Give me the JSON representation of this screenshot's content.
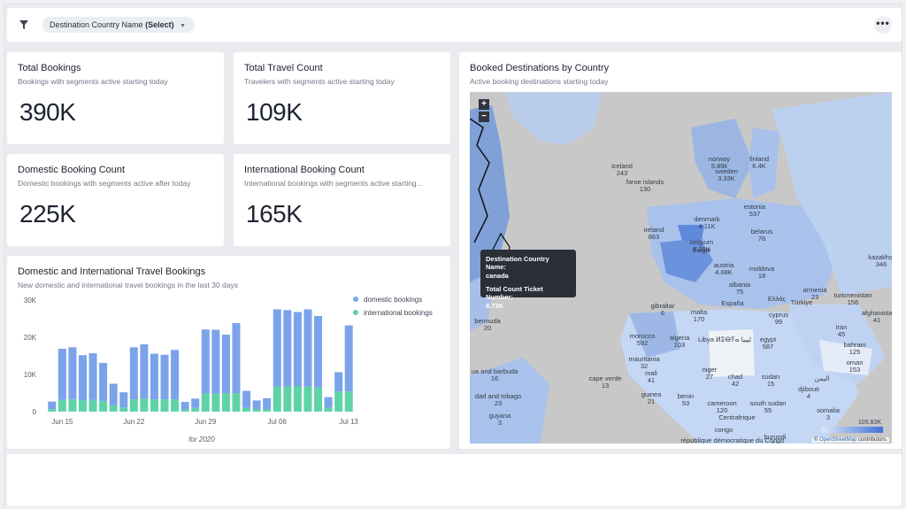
{
  "filter": {
    "icon": "filter-icon",
    "chip_label": "Destination Country Name",
    "chip_value": "(Select)"
  },
  "toolbar": {
    "more_label": "•••"
  },
  "kpis": [
    {
      "title": "Total Bookings",
      "subtitle": "Bookings with segments active starting today",
      "value": "390K"
    },
    {
      "title": "Total Travel Count",
      "subtitle": "Travelers with segments active starting today",
      "value": "109K"
    },
    {
      "title": "Domestic Booking Count",
      "subtitle": "Domestic bookings with segments active after today",
      "value": "225K"
    },
    {
      "title": "International Booking Count",
      "subtitle": "International bookings with segments active starting...",
      "value": "165K"
    }
  ],
  "bar_card": {
    "title": "Domestic and International Travel Bookings",
    "subtitle": "New domestic and international travel bookings in the last 30 days",
    "footer": "for 2020"
  },
  "chart_data": {
    "type": "bar",
    "stacked": true,
    "ylim": [
      0,
      30000
    ],
    "yticks": [
      "0",
      "10K",
      "20K",
      "30K"
    ],
    "xtick_labels": [
      "Jun 15",
      "Jun 22",
      "Jun 29",
      "Jul 06",
      "Jul 13"
    ],
    "xtick_index": [
      1,
      8,
      15,
      22,
      29
    ],
    "categories": [
      "Jun 14",
      "Jun 15",
      "Jun 16",
      "Jun 17",
      "Jun 18",
      "Jun 19",
      "Jun 20",
      "Jun 21",
      "Jun 22",
      "Jun 23",
      "Jun 24",
      "Jun 25",
      "Jun 26",
      "Jun 27",
      "Jun 28",
      "Jun 29",
      "Jun 30",
      "Jul 01",
      "Jul 02",
      "Jul 03",
      "Jul 04",
      "Jul 05",
      "Jul 06",
      "Jul 07",
      "Jul 08",
      "Jul 09",
      "Jul 10",
      "Jul 11",
      "Jul 12",
      "Jul 13"
    ],
    "series": [
      {
        "name": "domestic bookings",
        "color": "#7ba3ea",
        "values": [
          2000,
          13700,
          14000,
          12200,
          12500,
          10300,
          5800,
          4100,
          14000,
          14600,
          12300,
          12000,
          13300,
          2000,
          2500,
          17300,
          17200,
          15700,
          18800,
          4600,
          2300,
          3000,
          20800,
          20600,
          20000,
          20800,
          19200,
          2800,
          5200,
          17800
        ]
      },
      {
        "name": "international bookings",
        "color": "#5fd3a6",
        "values": [
          700,
          3200,
          3300,
          3000,
          3200,
          2800,
          1700,
          1100,
          3300,
          3500,
          3300,
          3300,
          3300,
          600,
          1000,
          4800,
          4800,
          5000,
          5000,
          1000,
          700,
          600,
          6700,
          6700,
          6800,
          6700,
          6500,
          1100,
          5400,
          5400
        ]
      }
    ],
    "legend_position": "top-right"
  },
  "map_card": {
    "title": "Booked Destinations by Country",
    "subtitle": "Active booking destinations starting today",
    "zoom_in": "+",
    "zoom_out": "−",
    "tooltip": {
      "label1": "Destination Country Name:",
      "value1": "canada",
      "label2": "Total Count Ticket Number:",
      "value2": "8.73K"
    },
    "scale_max": "105.83K",
    "attribution_prefix": "©",
    "attribution_link": "OpenStreetMap",
    "attribution_suffix": "contributors."
  },
  "map_labels": [
    {
      "name": "iceland",
      "value": "243"
    },
    {
      "name": "faroe islands",
      "value": "130"
    },
    {
      "name": "norway",
      "value": "5.89k"
    },
    {
      "name": "sweden",
      "value": "3.33K"
    },
    {
      "name": "finland",
      "value": "6.4K"
    },
    {
      "name": "estonia",
      "value": "537"
    },
    {
      "name": "denmark",
      "value": "4.11K"
    },
    {
      "name": "ireland",
      "value": "863"
    },
    {
      "name": "belgium",
      "value": "7.21K"
    },
    {
      "name": "belarus",
      "value": "78"
    },
    {
      "name": "austria",
      "value": "4.68K"
    },
    {
      "name": "moldova",
      "value": "18"
    },
    {
      "name": "albania",
      "value": "75"
    },
    {
      "name": "gibraltar",
      "value": "6"
    },
    {
      "name": "malta",
      "value": "170"
    },
    {
      "name": "cyprus",
      "value": "99"
    },
    {
      "name": "armenia",
      "value": "23"
    },
    {
      "name": "turkmenistan",
      "value": "156"
    },
    {
      "name": "kazakhst",
      "value": "346"
    },
    {
      "name": "afghanista",
      "value": "41"
    },
    {
      "name": "iran",
      "value": "45"
    },
    {
      "name": "bahrain",
      "value": "125"
    },
    {
      "name": "oman",
      "value": "153"
    },
    {
      "name": "morocco",
      "value": "592"
    },
    {
      "name": "algeria",
      "value": "103"
    },
    {
      "name": "Libya ⵍⵉⴱⵢⴰ ليبيا",
      "value": ""
    },
    {
      "name": "egypt",
      "value": "587"
    },
    {
      "name": "mauritania",
      "value": "32"
    },
    {
      "name": "mali",
      "value": "41"
    },
    {
      "name": "niger",
      "value": "27"
    },
    {
      "name": "chad",
      "value": "42"
    },
    {
      "name": "sudan",
      "value": "15"
    },
    {
      "name": "cape verde",
      "value": "13"
    },
    {
      "name": "guinea",
      "value": "21"
    },
    {
      "name": "benin",
      "value": "53"
    },
    {
      "name": "djibouti",
      "value": "4"
    },
    {
      "name": "اليمن",
      "value": ""
    },
    {
      "name": "cameroon",
      "value": "120"
    },
    {
      "name": "south sudan",
      "value": "55"
    },
    {
      "name": "somalia",
      "value": "3"
    },
    {
      "name": "Centrafrique",
      "value": ""
    },
    {
      "name": "congo",
      "value": ""
    },
    {
      "name": "république démocratique du Congo",
      "value": ""
    },
    {
      "name": "burundi",
      "value": "17"
    },
    {
      "name": "bermuda",
      "value": "20"
    },
    {
      "name": "ua and barbuda",
      "value": "16"
    },
    {
      "name": "dad and tobago",
      "value": "23"
    },
    {
      "name": "guyana",
      "value": "3"
    },
    {
      "name": "Ελλάς",
      "value": ""
    },
    {
      "name": "España",
      "value": ""
    },
    {
      "name": "Türkiye",
      "value": ""
    },
    {
      "name": "België",
      "value": ""
    }
  ]
}
